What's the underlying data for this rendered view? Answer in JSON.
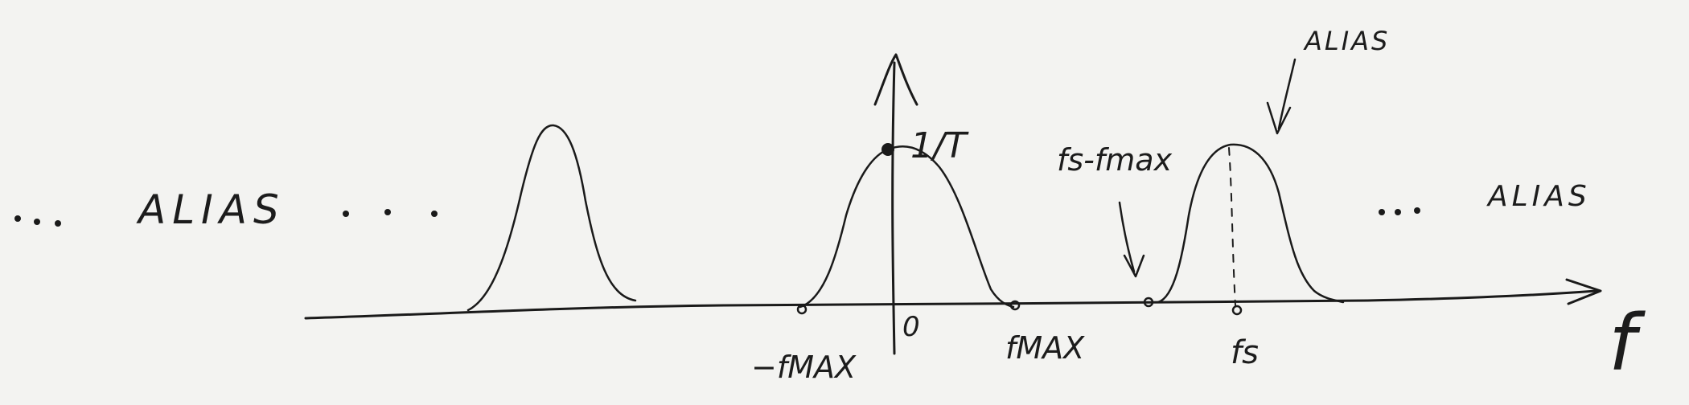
{
  "diagram": {
    "labels": {
      "alias_left": "ALIAS",
      "alias_top": "ALIAS",
      "alias_right": "ALIAS",
      "amplitude": "1/T",
      "origin": "0",
      "neg_fmax": "−fMAX",
      "fmax": "fMAX",
      "fs_minus_fmax": "fs-fmax",
      "fs": "fs",
      "axis_f": "f"
    },
    "ink_color": "#1a1a1a",
    "paper_color": "#f3f3f1"
  }
}
